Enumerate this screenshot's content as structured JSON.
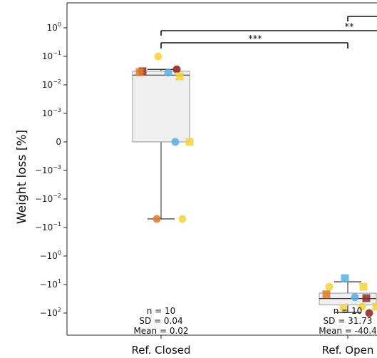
{
  "chart_data": {
    "type": "box",
    "ylabel": "Weight loss [%]",
    "yscale": "symlog",
    "yticks": [
      {
        "base": "10",
        "exp": "0"
      },
      {
        "base": "10",
        "exp": "−1"
      },
      {
        "base": "10",
        "exp": "−2"
      },
      {
        "base": "10",
        "exp": "−3"
      },
      {
        "base": "0",
        "exp": ""
      },
      {
        "base": "−10",
        "exp": "−3"
      },
      {
        "base": "−10",
        "exp": "−2"
      },
      {
        "base": "−10",
        "exp": "−1"
      },
      {
        "base": "−10",
        "exp": "0"
      },
      {
        "base": "−10",
        "exp": "1"
      },
      {
        "base": "−10",
        "exp": "2"
      }
    ],
    "categories": [
      {
        "label": "Ref. Closed",
        "n": "n = 10",
        "sd": "SD = 0.04",
        "mean": "Mean = 0.02",
        "box": {
          "q1": 0,
          "median": 0.022,
          "q3": 0.03,
          "whisker_low": -0.05,
          "whisker_high": 0.035
        },
        "points": [
          {
            "y": 0.1,
            "shape": "circle",
            "color": "#f2d43a"
          },
          {
            "y": 0.035,
            "shape": "circle",
            "color": "#8e1f1f"
          },
          {
            "y": 0.03,
            "shape": "square",
            "color": "#8e2b2b"
          },
          {
            "y": 0.028,
            "shape": "square",
            "color": "#e07a2a"
          },
          {
            "y": 0.027,
            "shape": "circle",
            "color": "#5aaee0"
          },
          {
            "y": 0.02,
            "shape": "square",
            "color": "#f2d43a"
          },
          {
            "y": 0,
            "shape": "circle",
            "color": "#5aaee0"
          },
          {
            "y": 0,
            "shape": "square",
            "color": "#f2d43a"
          },
          {
            "y": -0.05,
            "shape": "circle",
            "color": "#e07a2a"
          },
          {
            "y": -0.05,
            "shape": "circle",
            "color": "#f2d43a"
          }
        ]
      },
      {
        "label": "Ref. Open",
        "n": "n = 10",
        "sd": "SD = 31.73",
        "mean": "Mean = -40.4",
        "box": {
          "q1": -52,
          "median": -31,
          "q3": -20,
          "whisker_low": -95,
          "whisker_high": -8
        },
        "points": [
          {
            "y": -6,
            "shape": "square",
            "color": "#5aaee0"
          },
          {
            "y": -12,
            "shape": "square",
            "color": "#f2d43a"
          },
          {
            "y": -12,
            "shape": "circle",
            "color": "#f2d43a"
          },
          {
            "y": -22,
            "shape": "square",
            "color": "#e07a2a"
          },
          {
            "y": -28,
            "shape": "circle",
            "color": "#5aaee0"
          },
          {
            "y": -30,
            "shape": "square",
            "color": "#8e2b2b"
          },
          {
            "y": -60,
            "shape": "circle",
            "color": "#f2d43a"
          },
          {
            "y": -60,
            "shape": "square",
            "color": "#f2d43a"
          },
          {
            "y": -65,
            "shape": "circle",
            "color": "#f2d43a"
          },
          {
            "y": -100,
            "shape": "circle",
            "color": "#8e1f1f"
          }
        ]
      }
    ],
    "significance": [
      {
        "label": "***"
      },
      {
        "label": "**"
      }
    ]
  }
}
